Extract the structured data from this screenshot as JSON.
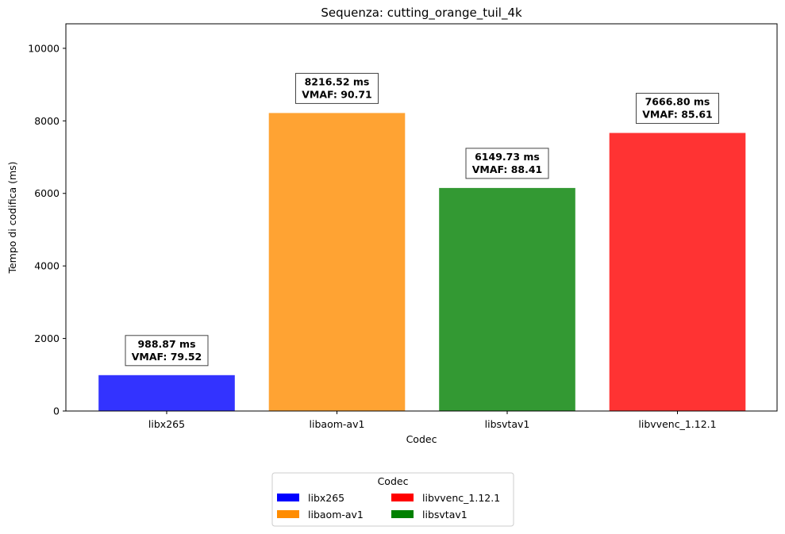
{
  "chart_data": {
    "type": "bar",
    "title": "Sequenza: cutting_orange_tuil_4k",
    "xlabel": "Codec",
    "ylabel": "Tempo di codifica (ms)",
    "ylim": [
      0,
      10676
    ],
    "yticks": [
      0,
      2000,
      4000,
      6000,
      8000,
      10000
    ],
    "categories": [
      "libx265",
      "libaom-av1",
      "libsvtav1",
      "libvvenc_1.12.1"
    ],
    "values": [
      988.87,
      8216.52,
      6149.73,
      7666.8
    ],
    "colors": [
      "#3333ff",
      "#ffa333",
      "#339933",
      "#ff3333"
    ],
    "annotations": [
      {
        "time": "988.87 ms",
        "vmaf": "VMAF: 79.52"
      },
      {
        "time": "8216.52 ms",
        "vmaf": "VMAF: 90.71"
      },
      {
        "time": "6149.73 ms",
        "vmaf": "VMAF: 88.41"
      },
      {
        "time": "7666.80 ms",
        "vmaf": "VMAF: 85.61"
      }
    ],
    "grid": false,
    "legend": {
      "title": "Codec",
      "placement": "bottom-center",
      "columns": 2,
      "entries": [
        {
          "name": "libx265",
          "color": "#0000ff"
        },
        {
          "name": "libvvenc_1.12.1",
          "color": "#ff0000"
        },
        {
          "name": "libaom-av1",
          "color": "#ff8c00"
        },
        {
          "name": "libsvtav1",
          "color": "#008000"
        }
      ]
    }
  }
}
